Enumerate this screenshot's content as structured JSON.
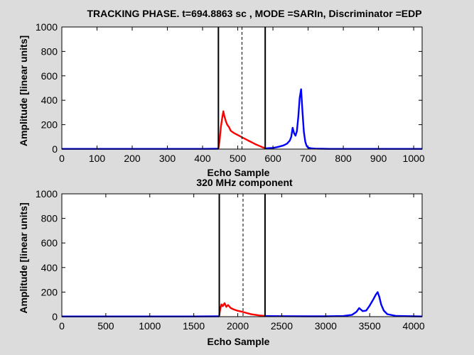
{
  "figure": {
    "background": "#dcdcdc"
  },
  "chart_data": [
    {
      "type": "line",
      "title": "TRACKING PHASE. t=694.8863 sc , MODE =SARIn, Discriminator =EDP",
      "xlabel": "Echo Sample",
      "ylabel": "Amplitude [linear units]",
      "xlim": [
        0,
        1024
      ],
      "ylim": [
        0,
        1000
      ],
      "xticks": [
        0,
        100,
        200,
        300,
        400,
        500,
        600,
        700,
        800,
        900,
        1000
      ],
      "yticks": [
        0,
        200,
        400,
        600,
        800,
        1000
      ],
      "grid": false,
      "series": [
        {
          "color": "#0000ff",
          "x": [
            0,
            100,
            200,
            300,
            400,
            445
          ],
          "y": [
            2,
            2,
            2,
            2,
            2,
            3
          ]
        },
        {
          "color": "#ff0000",
          "x": [
            445,
            448,
            452,
            456,
            459,
            462,
            466,
            470,
            475,
            480,
            490,
            500,
            510,
            520,
            530,
            540,
            550,
            560,
            570,
            578
          ],
          "y": [
            5,
            60,
            180,
            260,
            310,
            270,
            230,
            200,
            180,
            150,
            130,
            115,
            100,
            85,
            70,
            55,
            40,
            28,
            15,
            8
          ]
        },
        {
          "color": "#0000ff",
          "x": [
            578,
            590,
            600,
            610,
            620,
            630,
            640,
            648,
            652,
            656,
            660,
            664,
            668,
            672,
            676,
            680,
            684,
            688,
            692,
            696,
            700,
            710,
            720,
            740,
            760,
            800,
            900,
            1024
          ],
          "y": [
            5,
            8,
            10,
            15,
            22,
            30,
            45,
            70,
            100,
            175,
            130,
            110,
            145,
            260,
            420,
            490,
            300,
            140,
            60,
            25,
            12,
            6,
            4,
            3,
            2,
            2,
            2,
            2
          ]
        }
      ],
      "vlines": [
        {
          "x": 445,
          "style": "solid"
        },
        {
          "x": 512,
          "style": "dashed"
        },
        {
          "x": 578,
          "style": "solid"
        }
      ]
    },
    {
      "type": "line",
      "title": "320 MHz component",
      "xlabel": "Echo Sample",
      "ylabel": "Amplitude [linear units]",
      "xlim": [
        0,
        4096
      ],
      "ylim": [
        0,
        1000
      ],
      "xticks": [
        0,
        500,
        1000,
        1500,
        2000,
        2500,
        3000,
        3500,
        4000
      ],
      "yticks": [
        0,
        200,
        400,
        600,
        800,
        1000
      ],
      "grid": false,
      "series": [
        {
          "color": "#0000ff",
          "x": [
            0,
            500,
            1000,
            1500,
            1790
          ],
          "y": [
            2,
            2,
            2,
            2,
            3
          ]
        },
        {
          "color": "#ff0000",
          "x": [
            1790,
            1800,
            1815,
            1830,
            1850,
            1870,
            1890,
            1920,
            1950,
            1990,
            2050,
            2100,
            2150,
            2200,
            2250,
            2310
          ],
          "y": [
            10,
            60,
            100,
            85,
            110,
            80,
            95,
            70,
            60,
            50,
            40,
            30,
            20,
            15,
            10,
            6
          ]
        },
        {
          "color": "#0000ff",
          "x": [
            2310,
            2500,
            2800,
            3000,
            3200,
            3300,
            3350,
            3380,
            3420,
            3460,
            3500,
            3540,
            3570,
            3590,
            3610,
            3630,
            3660,
            3700,
            3800,
            4000,
            4096
          ],
          "y": [
            5,
            4,
            3,
            3,
            5,
            15,
            40,
            70,
            45,
            50,
            90,
            140,
            180,
            200,
            160,
            100,
            50,
            20,
            6,
            3,
            2
          ]
        }
      ],
      "vlines": [
        {
          "x": 1790,
          "style": "solid"
        },
        {
          "x": 2060,
          "style": "dashed"
        },
        {
          "x": 2310,
          "style": "solid"
        }
      ]
    }
  ]
}
